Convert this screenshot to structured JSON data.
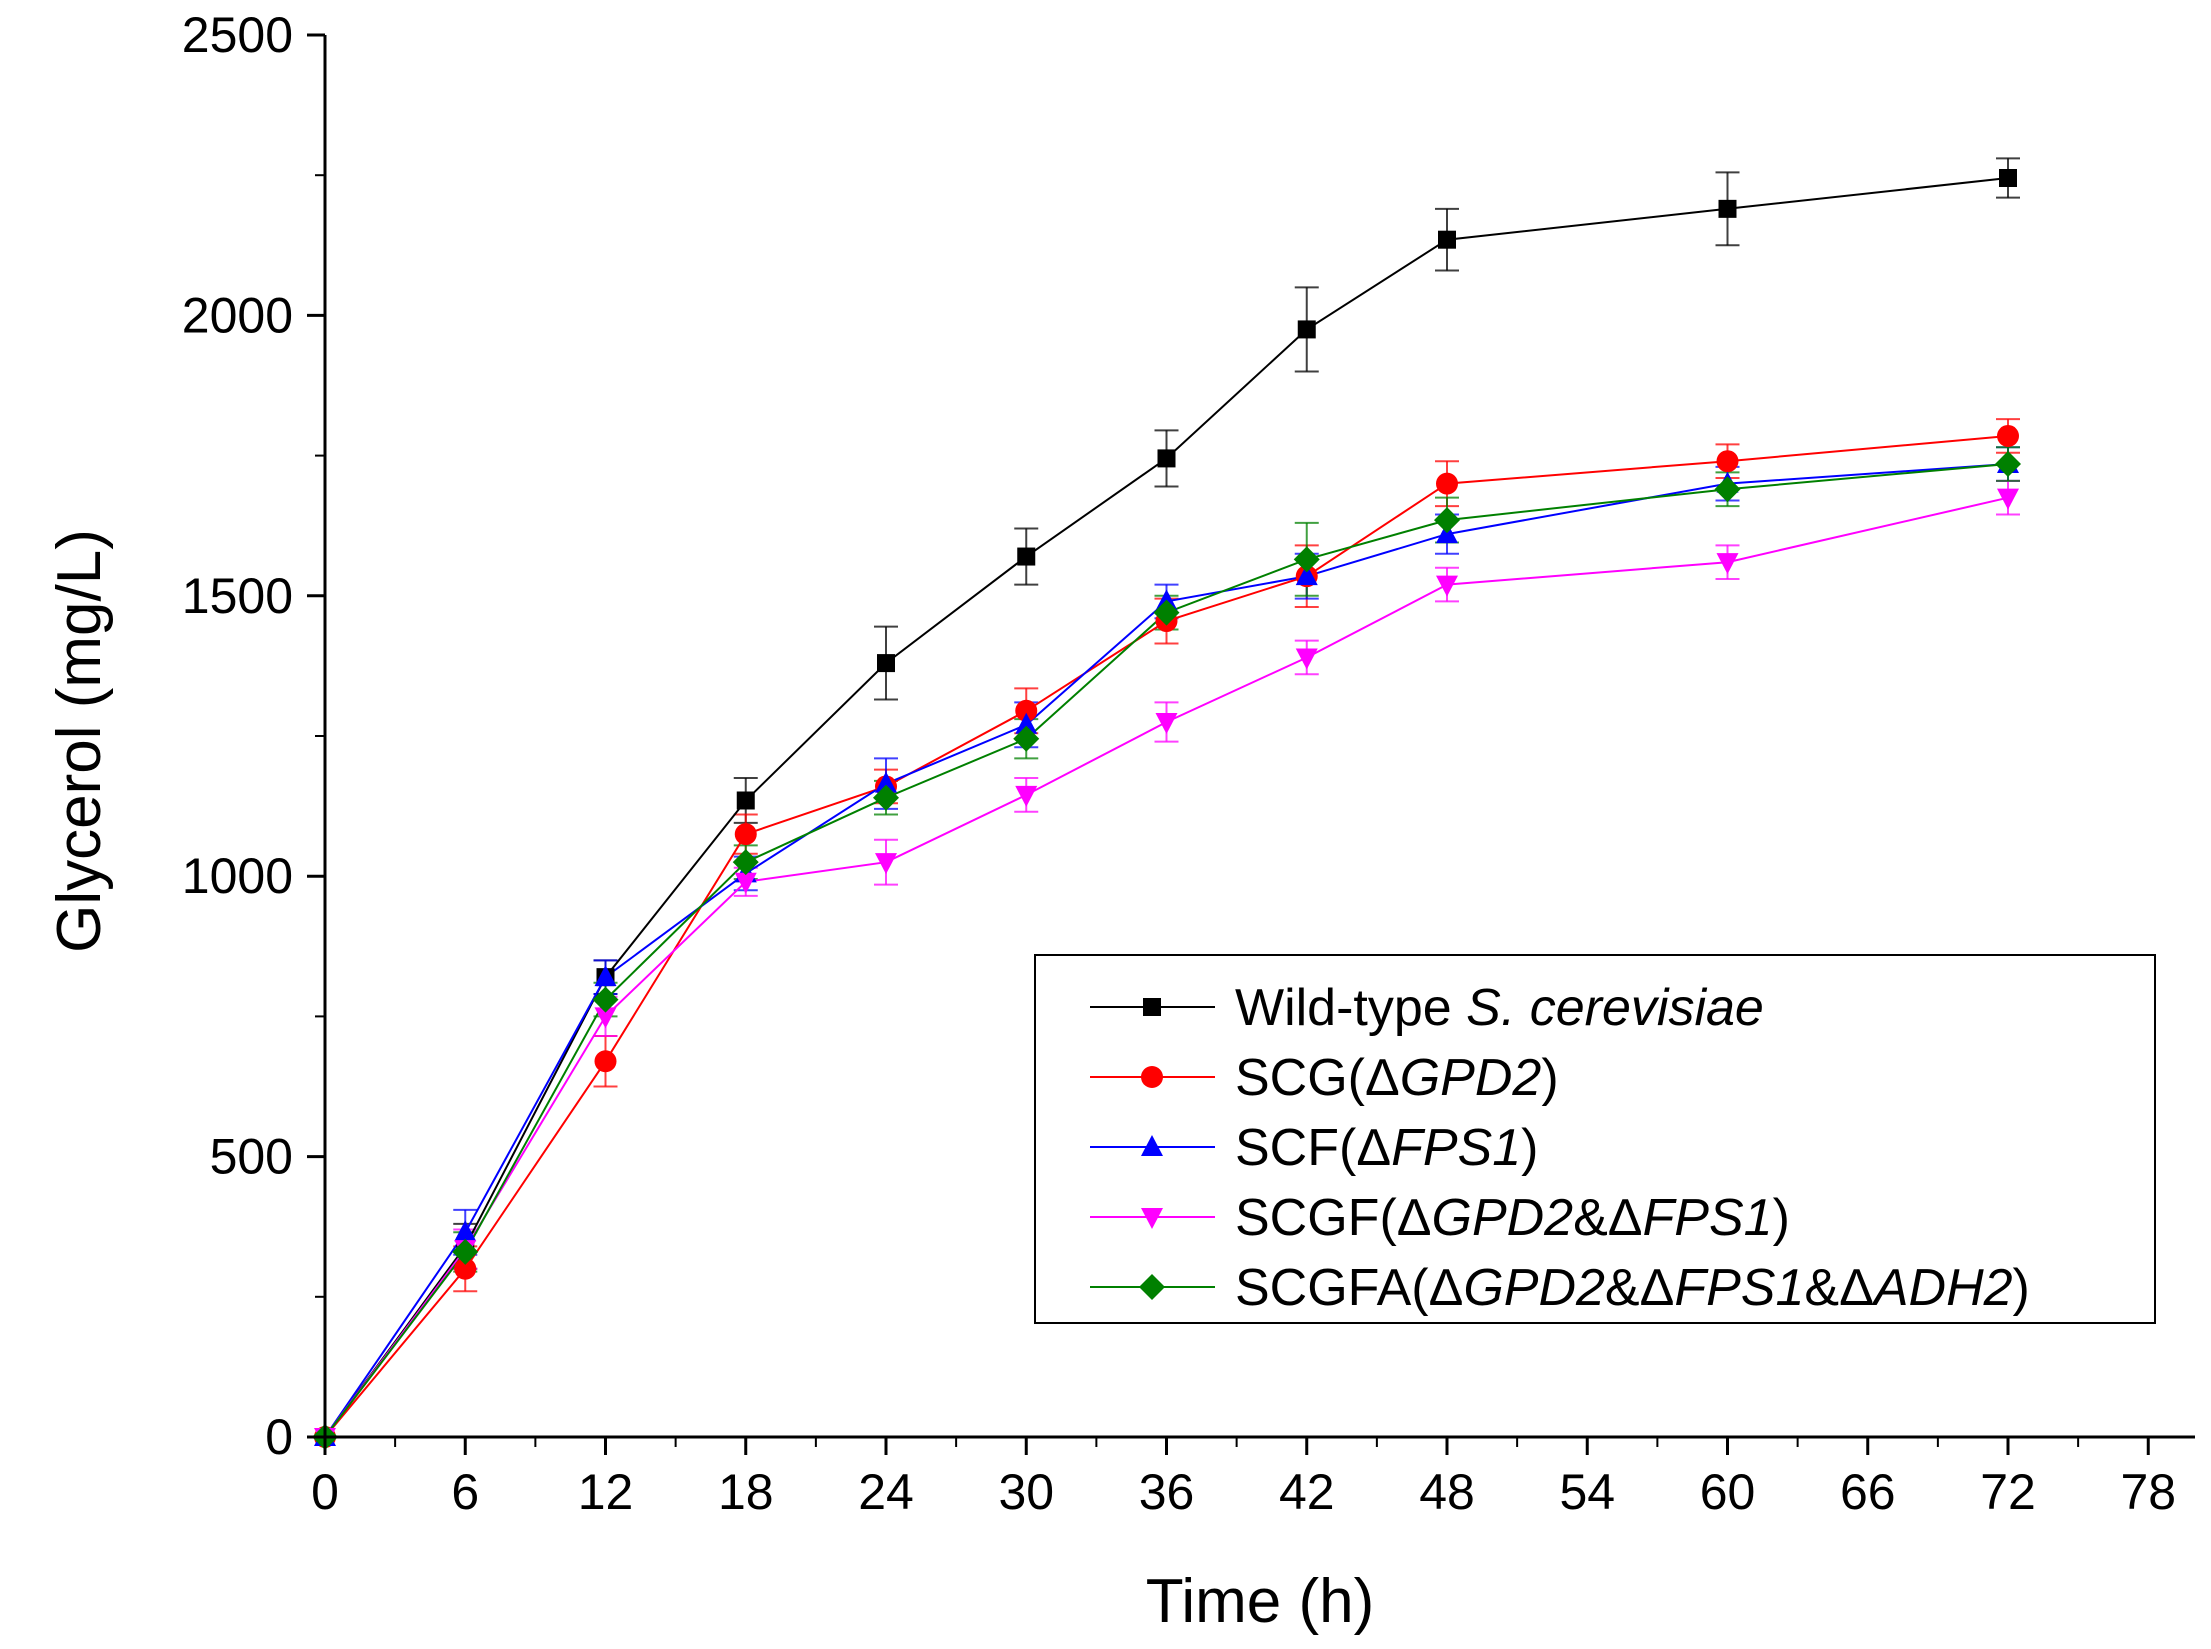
{
  "chart_data": {
    "type": "line",
    "title": "",
    "xlabel": "Time (h)",
    "ylabel": "Glycerol (mg/L)",
    "xlim": [
      0,
      80
    ],
    "ylim": [
      0,
      2500
    ],
    "x_ticks": [
      "0",
      "6",
      "12",
      "18",
      "24",
      "30",
      "36",
      "42",
      "48",
      "54",
      "60",
      "66",
      "72",
      "78"
    ],
    "y_ticks": [
      "0",
      "500",
      "1000",
      "1500",
      "2000",
      "2500"
    ],
    "grid": false,
    "legend_position": "bottom-right",
    "series": [
      {
        "name": "Wild-type S. cerevisiae",
        "label_parts": [
          {
            "t": "Wild-type "
          },
          {
            "t": "S. cerevisiae",
            "i": true
          }
        ],
        "color": "#000000",
        "marker": "square",
        "x": [
          0,
          6,
          12,
          18,
          24,
          30,
          36,
          42,
          48,
          60,
          72
        ],
        "y": [
          0,
          340,
          820,
          1135,
          1380,
          1570,
          1745,
          1975,
          2135,
          2190,
          2245
        ],
        "err": [
          0,
          40,
          30,
          40,
          65,
          50,
          50,
          75,
          55,
          65,
          35
        ]
      },
      {
        "name": "SCG(ΔGPD2)",
        "label_parts": [
          {
            "t": "SCG(Δ"
          },
          {
            "t": "GPD2",
            "i": true
          },
          {
            "t": ")"
          }
        ],
        "color": "#ff0000",
        "marker": "circle",
        "x": [
          0,
          6,
          12,
          18,
          24,
          30,
          36,
          42,
          48,
          60,
          72
        ],
        "y": [
          0,
          300,
          670,
          1075,
          1160,
          1295,
          1455,
          1535,
          1700,
          1740,
          1785
        ],
        "err": [
          0,
          40,
          45,
          35,
          30,
          40,
          40,
          55,
          40,
          30,
          30
        ]
      },
      {
        "name": "SCF(ΔFPS1)",
        "label_parts": [
          {
            "t": "SCF(Δ"
          },
          {
            "t": "FPS1",
            "i": true
          },
          {
            "t": ")"
          }
        ],
        "color": "#0000ff",
        "marker": "triangle-up",
        "x": [
          0,
          6,
          12,
          18,
          24,
          30,
          36,
          42,
          48,
          60,
          72
        ],
        "y": [
          0,
          365,
          820,
          1005,
          1165,
          1270,
          1490,
          1535,
          1610,
          1700,
          1735
        ],
        "err": [
          0,
          40,
          30,
          30,
          45,
          40,
          30,
          40,
          35,
          30,
          30
        ]
      },
      {
        "name": "SCGF(ΔGPD2&ΔFPS1)",
        "label_parts": [
          {
            "t": "SCGF(Δ"
          },
          {
            "t": "GPD2",
            "i": true
          },
          {
            "t": "&Δ"
          },
          {
            "t": "FPS1",
            "i": true
          },
          {
            "t": ")"
          }
        ],
        "color": "#ff00ff",
        "marker": "triangle-down",
        "x": [
          0,
          6,
          12,
          18,
          24,
          30,
          36,
          42,
          48,
          60,
          72
        ],
        "y": [
          0,
          335,
          750,
          990,
          1025,
          1145,
          1275,
          1390,
          1520,
          1560,
          1675
        ],
        "err": [
          0,
          35,
          35,
          25,
          40,
          30,
          35,
          30,
          30,
          30,
          30
        ]
      },
      {
        "name": "SCGFA(ΔGPD2&ΔFPS1&ΔADH2)",
        "label_parts": [
          {
            "t": "SCGFA(Δ"
          },
          {
            "t": "GPD2",
            "i": true
          },
          {
            "t": "&Δ"
          },
          {
            "t": "FPS1",
            "i": true
          },
          {
            "t": "&Δ"
          },
          {
            "t": "ADH2",
            "i": true
          },
          {
            "t": ")"
          }
        ],
        "color": "#008000",
        "marker": "diamond",
        "x": [
          0,
          6,
          12,
          18,
          24,
          30,
          36,
          42,
          48,
          60,
          72
        ],
        "y": [
          0,
          330,
          780,
          1025,
          1140,
          1245,
          1470,
          1565,
          1635,
          1690,
          1735
        ],
        "err": [
          0,
          35,
          30,
          30,
          30,
          35,
          30,
          65,
          40,
          30,
          30
        ]
      }
    ]
  }
}
